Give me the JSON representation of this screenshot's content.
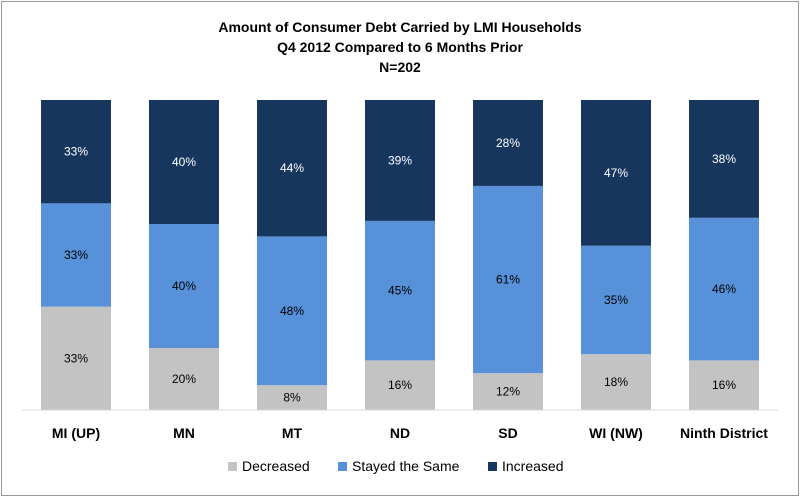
{
  "chart_data": {
    "type": "bar",
    "stacked": true,
    "percent_stacked": true,
    "title": [
      "Amount of Consumer Debt Carried by LMI Households",
      "Q4 2012 Compared to 6 Months Prior",
      "N=202"
    ],
    "categories": [
      "MI (UP)",
      "MN",
      "MT",
      "ND",
      "SD",
      "WI (NW)",
      "Ninth District"
    ],
    "series": [
      {
        "name": "Decreased",
        "color": "#c3c3c3",
        "values": [
          33,
          20,
          8,
          16,
          12,
          18,
          16
        ],
        "labels": [
          "33%",
          "20%",
          "8%",
          "16%",
          "12%",
          "18%",
          "16%"
        ]
      },
      {
        "name": "Stayed the Same",
        "color": "#5791d9",
        "values": [
          33,
          40,
          48,
          45,
          61,
          35,
          46
        ],
        "labels": [
          "33%",
          "40%",
          "48%",
          "45%",
          "61%",
          "35%",
          "46%"
        ]
      },
      {
        "name": "Increased",
        "color": "#17365d",
        "values": [
          33,
          40,
          44,
          39,
          28,
          47,
          38
        ],
        "labels": [
          "33%",
          "40%",
          "44%",
          "39%",
          "28%",
          "47%",
          "38%"
        ]
      }
    ],
    "label_colors": [
      "#000000",
      "#000000",
      "#ffffff"
    ],
    "legend_position": "bottom",
    "grid": false
  }
}
